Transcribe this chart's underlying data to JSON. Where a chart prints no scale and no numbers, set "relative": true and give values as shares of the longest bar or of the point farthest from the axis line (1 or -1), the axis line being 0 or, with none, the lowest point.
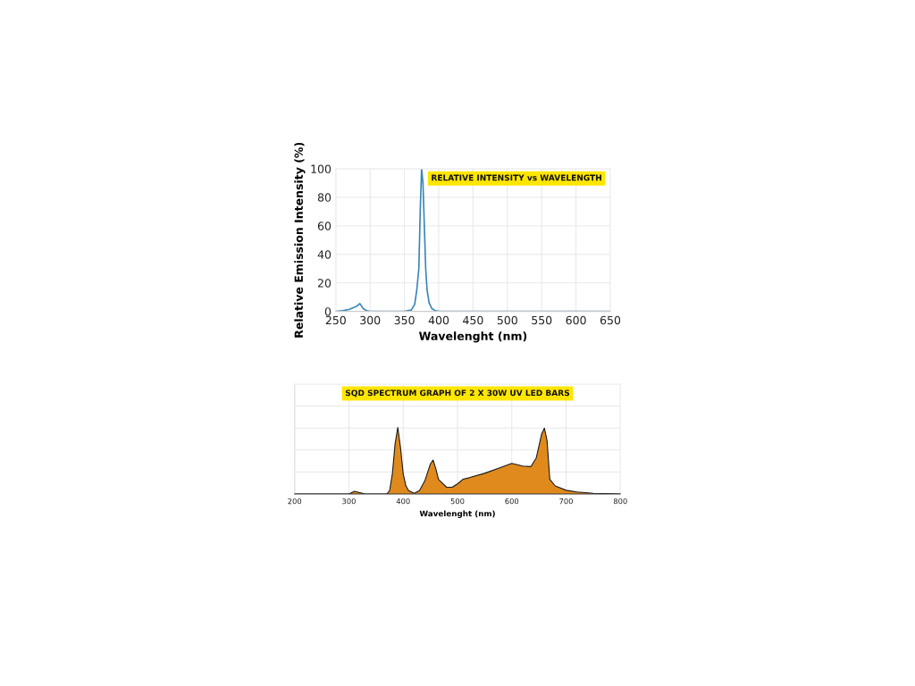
{
  "chart_data": [
    {
      "type": "line",
      "title": "RELATIVE INTENSITY vs WAVELENGTH",
      "xlabel": "Wavelenght (nm)",
      "ylabel": "Relative Emission Intensity (%)",
      "x": [
        250,
        260,
        270,
        280,
        285,
        290,
        295,
        300,
        350,
        360,
        365,
        368,
        371,
        373,
        375,
        377,
        379,
        381,
        383,
        386,
        390,
        395,
        400,
        650
      ],
      "series": [
        {
          "color": "#3a86b8",
          "values": [
            0,
            0.5,
            1.5,
            3.5,
            5.5,
            2,
            0.5,
            0,
            0,
            1,
            5,
            15,
            30,
            70,
            100,
            90,
            60,
            30,
            15,
            6,
            2,
            0.5,
            0,
            0
          ]
        }
      ],
      "xlim": [
        250,
        650
      ],
      "xticks": [
        250,
        300,
        350,
        400,
        450,
        500,
        550,
        600,
        650
      ],
      "ylim": [
        0,
        100
      ],
      "yticks": [
        0,
        20,
        40,
        60,
        80,
        100
      ],
      "grid": true
    },
    {
      "type": "area",
      "title": "SQD SPECTRUM GRAPH OF 2 X 30W UV LED BARS",
      "xlabel": "Wavelenght (nm)",
      "relative": true,
      "x": [
        200,
        290,
        300,
        310,
        320,
        330,
        370,
        375,
        380,
        385,
        390,
        395,
        400,
        405,
        410,
        420,
        430,
        440,
        450,
        455,
        460,
        465,
        470,
        480,
        490,
        500,
        510,
        520,
        550,
        580,
        600,
        620,
        635,
        645,
        655,
        660,
        665,
        670,
        680,
        700,
        720,
        750,
        800
      ],
      "series": [
        {
          "color": "#e08a1e",
          "values": [
            0,
            0,
            0,
            0.04,
            0.02,
            0,
            0,
            0.05,
            0.3,
            0.75,
            1.0,
            0.7,
            0.3,
            0.12,
            0.05,
            0.01,
            0.05,
            0.2,
            0.45,
            0.51,
            0.38,
            0.22,
            0.18,
            0.1,
            0.1,
            0.15,
            0.22,
            0.24,
            0.31,
            0.4,
            0.46,
            0.42,
            0.41,
            0.54,
            0.9,
            0.99,
            0.8,
            0.22,
            0.12,
            0.055,
            0.03,
            0.01,
            0
          ]
        }
      ],
      "xlim": [
        200,
        800
      ],
      "xticks": [
        200,
        300,
        400,
        500,
        600,
        700,
        800
      ],
      "grid": true
    }
  ]
}
